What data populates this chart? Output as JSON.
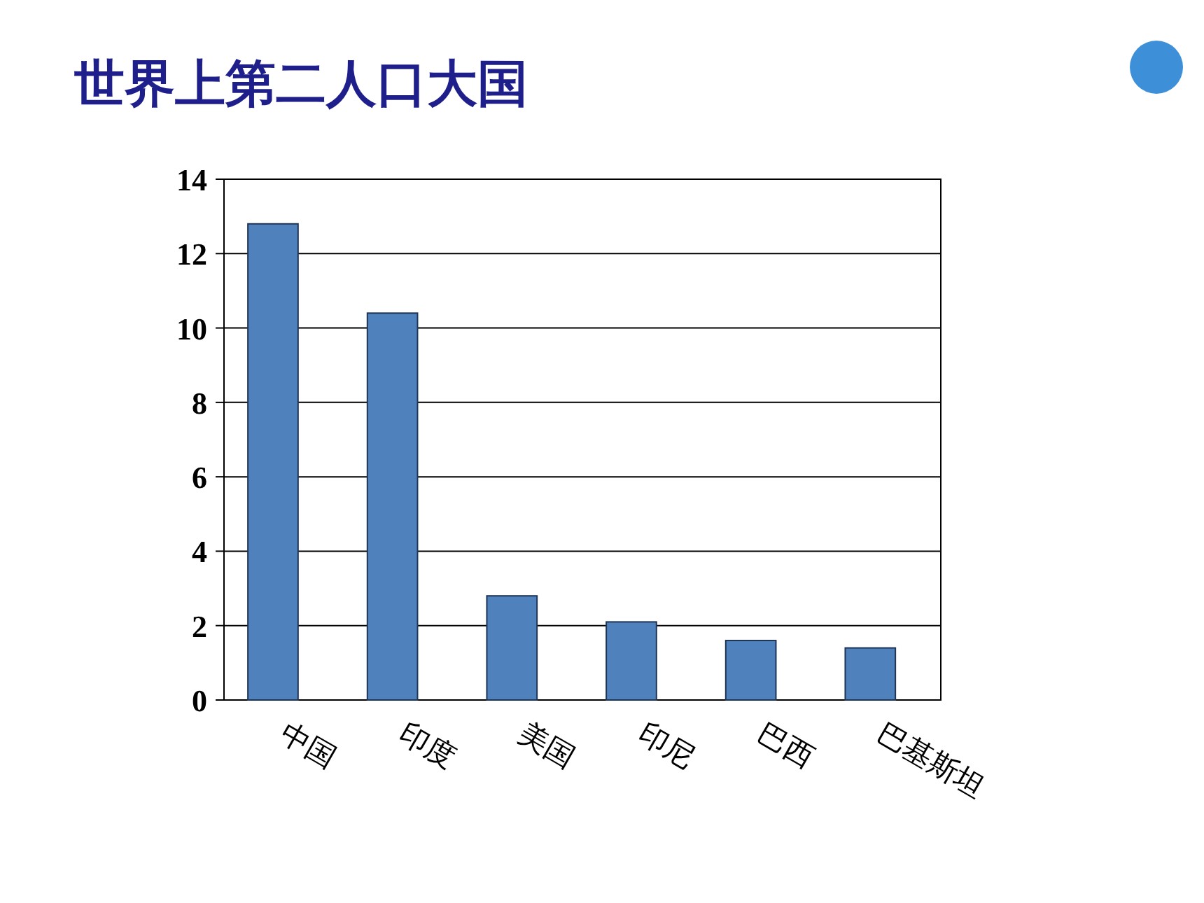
{
  "chart_data": {
    "type": "bar",
    "title": "世界上第二人口大国",
    "categories": [
      "中国",
      "印度",
      "美国",
      "印尼",
      "巴西",
      "巴基斯坦"
    ],
    "values": [
      12.8,
      10.4,
      2.8,
      2.1,
      1.6,
      1.4
    ],
    "color": "#4f81bd",
    "ylim": [
      0,
      14
    ],
    "yticks": [
      0,
      2,
      4,
      6,
      8,
      10,
      12,
      14
    ],
    "grid": "y"
  }
}
